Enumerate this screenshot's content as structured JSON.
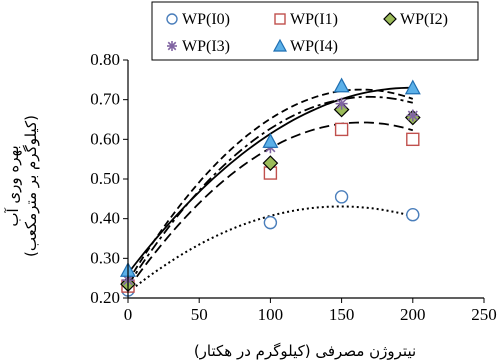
{
  "chart_data": {
    "type": "scatter",
    "xlabel": "نیتروژن مصرفی (کیلوگرم در هکتار)",
    "ylabel_line1": "بهره وری آب",
    "ylabel_line2": "(کیلوگرم بر مترمکعب)",
    "xlim": [
      0,
      250
    ],
    "ylim": [
      0.2,
      0.8
    ],
    "x_ticks": [
      0,
      50,
      100,
      150,
      200,
      250
    ],
    "x_tick_labels": [
      "0",
      "50",
      "100",
      "150",
      "200",
      "250"
    ],
    "y_ticks": [
      0.2,
      0.3,
      0.4,
      0.5,
      0.6,
      0.7,
      0.8
    ],
    "y_tick_labels": [
      "0.20",
      "0.30",
      "0.40",
      "0.50",
      "0.60",
      "0.70",
      "0.80"
    ],
    "grid": false,
    "legend_position": "top",
    "series": [
      {
        "name": "WP(I0)",
        "marker": "circle",
        "color": "#4a7ebb",
        "fit_style": "dotted",
        "x": [
          0,
          100,
          150,
          200
        ],
        "y": [
          0.22,
          0.39,
          0.455,
          0.41
        ],
        "fit": [
          0.214,
          0.0029,
          -9.7e-06
        ]
      },
      {
        "name": "WP(I1)",
        "marker": "square",
        "color": "#c0504d",
        "fit_style": "long-dash",
        "x": [
          0,
          100,
          150,
          200
        ],
        "y": [
          0.23,
          0.515,
          0.625,
          0.6
        ],
        "fit": [
          0.223,
          0.0051,
          -1.55e-05
        ]
      },
      {
        "name": "WP(I2)",
        "marker": "diamond",
        "color": "#9bbb59",
        "fit_style": "dash-dot",
        "x": [
          0,
          100,
          150,
          200
        ],
        "y": [
          0.235,
          0.54,
          0.675,
          0.655
        ],
        "fit": [
          0.232,
          0.0056,
          -1.65e-05
        ]
      },
      {
        "name": "WP(I3)",
        "marker": "star",
        "color": "#8064a2",
        "fit_style": "dashed",
        "x": [
          0,
          100,
          150,
          200
        ],
        "y": [
          0.245,
          0.58,
          0.69,
          0.66
        ],
        "fit": [
          0.242,
          0.0059,
          -1.8e-05
        ]
      },
      {
        "name": "WP(I4)",
        "marker": "triangle",
        "color": "#1f6fb2",
        "fit_style": "solid",
        "x": [
          0,
          100,
          150,
          200
        ],
        "y": [
          0.27,
          0.595,
          0.735,
          0.73
        ],
        "fit": [
          0.262,
          0.0047,
          -1.18e-05
        ]
      }
    ]
  }
}
